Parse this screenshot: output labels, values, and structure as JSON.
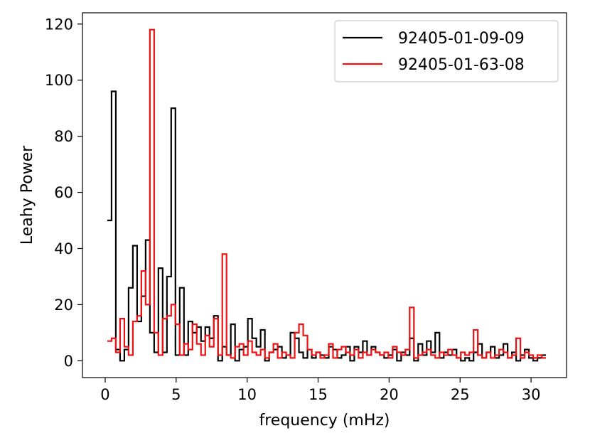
{
  "chart_data": {
    "type": "line",
    "step": true,
    "title": "",
    "xlabel": "frequency (mHz)",
    "ylabel": "Leahy Power",
    "xlim": [
      -1.6,
      32.5
    ],
    "ylim": [
      -6,
      124
    ],
    "xticks": [
      0,
      5,
      10,
      15,
      20,
      25,
      30
    ],
    "yticks": [
      0,
      20,
      40,
      60,
      80,
      100,
      120
    ],
    "grid": false,
    "legend_position": "top-right",
    "series": [
      {
        "name": "92405-01-09-09",
        "color": "#000000",
        "x": [
          0.3,
          0.6,
          0.9,
          1.2,
          1.5,
          1.8,
          2.1,
          2.4,
          2.7,
          3.0,
          3.3,
          3.6,
          3.9,
          4.2,
          4.5,
          4.8,
          5.1,
          5.4,
          5.7,
          6.0,
          6.3,
          6.6,
          6.9,
          7.2,
          7.5,
          7.8,
          8.1,
          8.4,
          8.7,
          9.0,
          9.3,
          9.6,
          9.9,
          10.2,
          10.5,
          10.8,
          11.1,
          11.4,
          11.7,
          12.0,
          12.3,
          12.6,
          12.9,
          13.2,
          13.5,
          13.8,
          14.1,
          14.4,
          14.7,
          15.0,
          15.3,
          15.6,
          15.9,
          16.2,
          16.5,
          16.8,
          17.1,
          17.4,
          17.7,
          18.0,
          18.3,
          18.6,
          18.9,
          19.2,
          19.5,
          19.8,
          20.1,
          20.4,
          20.7,
          21.0,
          21.3,
          21.6,
          21.9,
          22.2,
          22.5,
          22.8,
          23.1,
          23.4,
          23.7,
          24.0,
          24.3,
          24.6,
          24.9,
          25.2,
          25.5,
          25.8,
          26.1,
          26.4,
          26.7,
          27.0,
          27.3,
          27.6,
          27.9,
          28.2,
          28.5,
          28.8,
          29.1,
          29.4,
          29.7,
          30.0,
          30.3,
          30.6,
          30.9
        ],
        "y": [
          50,
          96,
          4,
          0,
          4,
          26,
          41,
          14,
          23,
          43,
          10,
          3,
          33,
          3,
          30,
          90,
          2,
          26,
          2,
          14,
          10,
          12,
          7,
          12,
          8,
          16,
          0,
          5,
          2,
          13,
          0,
          4,
          5,
          15,
          8,
          5,
          11,
          0,
          3,
          4,
          5,
          1,
          2,
          10,
          8,
          3,
          1,
          4,
          1,
          3,
          2,
          1,
          5,
          4,
          1,
          2,
          5,
          0,
          5,
          3,
          7,
          2,
          5,
          3,
          2,
          1,
          2,
          4,
          0,
          3,
          2,
          8,
          0,
          6,
          2,
          7,
          3,
          10,
          1,
          3,
          2,
          4,
          1,
          0,
          1,
          0,
          3,
          6,
          1,
          3,
          5,
          1,
          2,
          6,
          1,
          3,
          0,
          2,
          4,
          1,
          0,
          1,
          2
        ]
      },
      {
        "name": "92405-01-63-08",
        "color": "#ee1111",
        "x": [
          0.3,
          0.6,
          0.9,
          1.2,
          1.5,
          1.8,
          2.1,
          2.4,
          2.7,
          3.0,
          3.3,
          3.6,
          3.9,
          4.2,
          4.5,
          4.8,
          5.1,
          5.4,
          5.7,
          6.0,
          6.3,
          6.6,
          6.9,
          7.2,
          7.5,
          7.8,
          8.1,
          8.4,
          8.7,
          9.0,
          9.3,
          9.6,
          9.9,
          10.2,
          10.5,
          10.8,
          11.1,
          11.4,
          11.7,
          12.0,
          12.3,
          12.6,
          12.9,
          13.2,
          13.5,
          13.8,
          14.1,
          14.4,
          14.7,
          15.0,
          15.3,
          15.6,
          15.9,
          16.2,
          16.5,
          16.8,
          17.1,
          17.4,
          17.7,
          18.0,
          18.3,
          18.6,
          18.9,
          19.2,
          19.5,
          19.8,
          20.1,
          20.4,
          20.7,
          21.0,
          21.3,
          21.6,
          21.9,
          22.2,
          22.5,
          22.8,
          23.1,
          23.4,
          23.7,
          24.0,
          24.3,
          24.6,
          24.9,
          25.2,
          25.5,
          25.8,
          26.1,
          26.4,
          26.7,
          27.0,
          27.3,
          27.6,
          27.9,
          28.2,
          28.5,
          28.8,
          29.1,
          29.4,
          29.7,
          30.0,
          30.3,
          30.6,
          30.9
        ],
        "y": [
          7,
          8,
          3,
          15,
          5,
          2,
          14,
          16,
          32,
          20,
          118,
          10,
          2,
          15,
          16,
          20,
          13,
          2,
          6,
          4,
          13,
          6,
          2,
          9,
          5,
          15,
          2,
          38,
          2,
          1,
          5,
          6,
          2,
          7,
          3,
          2,
          4,
          1,
          3,
          6,
          1,
          3,
          2,
          1,
          10,
          13,
          9,
          4,
          2,
          3,
          1,
          2,
          6,
          1,
          4,
          5,
          3,
          2,
          4,
          1,
          3,
          2,
          4,
          3,
          2,
          3,
          1,
          5,
          3,
          2,
          4,
          19,
          1,
          2,
          3,
          4,
          2,
          1,
          3,
          2,
          4,
          2,
          1,
          3,
          2,
          3,
          11,
          2,
          1,
          3,
          1,
          2,
          4,
          3,
          1,
          2,
          8,
          1,
          3,
          2,
          1,
          2,
          1
        ]
      }
    ]
  }
}
